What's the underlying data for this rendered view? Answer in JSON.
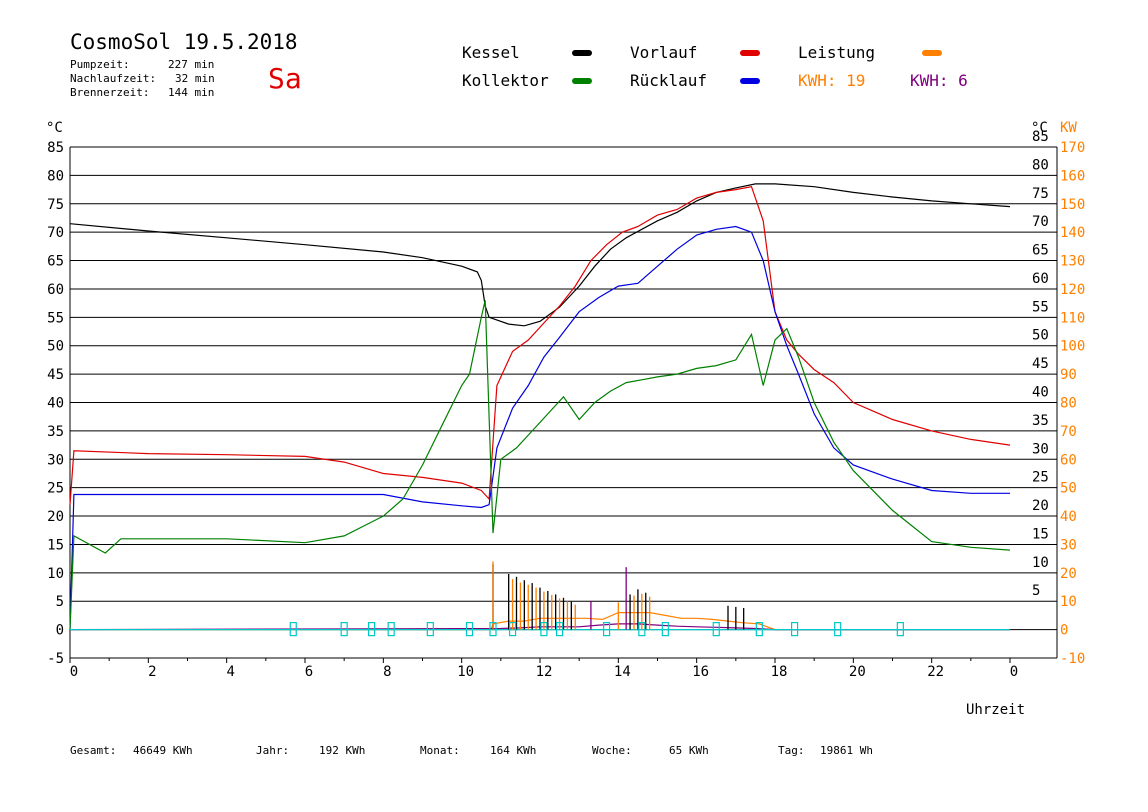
{
  "header": {
    "title": "CosmoSol 19.5.2018",
    "day": "Sa",
    "stats": [
      {
        "label": "Pumpzeit:",
        "value": "227 min"
      },
      {
        "label": "Nachlaufzeit:",
        "value": "32 min"
      },
      {
        "label": "Brennerzeit:",
        "value": "144 min"
      }
    ]
  },
  "legend": {
    "items": [
      {
        "label": "Kessel",
        "color": "#000000"
      },
      {
        "label": "Vorlauf",
        "color": "#e00000"
      },
      {
        "label": "Leistung",
        "color": "#ff8000"
      },
      {
        "label": "Kollektor",
        "color": "#008000"
      },
      {
        "label": "Rücklauf",
        "color": "#0000e0"
      }
    ],
    "kwh1_label": "KWH: 19",
    "kwh1_color": "#ff8000",
    "kwh2_label": "KWH: 6",
    "kwh2_color": "#800080"
  },
  "footer": {
    "gesamt_label": "Gesamt:",
    "gesamt_value": "46649 KWh",
    "jahr_label": "Jahr:",
    "jahr_value": "192 KWh",
    "monat_label": "Monat:",
    "monat_value": "164 KWh",
    "woche_label": "Woche:",
    "woche_value": "65 KWh",
    "tag_label": "Tag:",
    "tag_value": "19861 Wh"
  },
  "chart_data": {
    "type": "line",
    "xlabel": "Uhrzeit",
    "ylabel_left": "°C",
    "ylabel_right_temp": "°C",
    "ylabel_right_power": "KW",
    "xlim": [
      0,
      24
    ],
    "ylim": [
      -5,
      85
    ],
    "x_ticks": [
      "0",
      "2",
      "4",
      "6",
      "8",
      "10",
      "12",
      "14",
      "16",
      "18",
      "20",
      "22",
      "0"
    ],
    "y_ticks": [
      -5,
      0,
      5,
      10,
      15,
      20,
      25,
      30,
      35,
      40,
      45,
      50,
      55,
      60,
      65,
      70,
      75,
      80,
      85
    ],
    "y_ticks_right_temp": [
      5,
      10,
      15,
      20,
      25,
      30,
      35,
      40,
      45,
      50,
      55,
      60,
      65,
      70,
      75,
      80,
      85
    ],
    "y_ticks_right_power": [
      -10,
      0,
      10,
      20,
      30,
      40,
      50,
      60,
      70,
      80,
      90,
      100,
      110,
      120,
      130,
      140,
      150,
      160,
      170
    ],
    "grid": "horizontal",
    "series": [
      {
        "name": "Kessel",
        "color": "#000000",
        "x": [
          0,
          2,
          4,
          6,
          8,
          9,
          10,
          10.4,
          10.5,
          10.6,
          10.7,
          11.2,
          11.6,
          12,
          12.5,
          13,
          13.4,
          13.8,
          14.2,
          14.6,
          15,
          15.5,
          16,
          16.5,
          17,
          17.5,
          18,
          19,
          20,
          21,
          22,
          23,
          24
        ],
        "y": [
          71.5,
          70.2,
          69,
          67.8,
          66.5,
          65.5,
          64,
          63,
          61.5,
          57,
          55,
          53.8,
          53.5,
          54.3,
          56.8,
          60.5,
          64,
          67,
          69,
          70.5,
          72,
          73.5,
          75.5,
          77,
          77.8,
          78.5,
          78.5,
          78,
          77,
          76.2,
          75.5,
          75,
          74.5
        ]
      },
      {
        "name": "Vorlauf",
        "color": "#e00000",
        "x": [
          0,
          0.1,
          2,
          4,
          6,
          7,
          8,
          9,
          10,
          10.5,
          10.7,
          10.9,
          11.3,
          11.7,
          12.1,
          12.5,
          12.9,
          13.3,
          13.7,
          14.1,
          14.5,
          15,
          15.5,
          16,
          16.5,
          17,
          17.4,
          17.7,
          18,
          18.3,
          18.6,
          19,
          19.5,
          20,
          21,
          22,
          23,
          24
        ],
        "y": [
          22,
          31.5,
          31,
          30.8,
          30.5,
          29.5,
          27.5,
          26.8,
          25.8,
          24.5,
          23,
          43,
          49,
          51,
          54,
          57,
          60.5,
          65,
          67.8,
          70,
          71,
          73,
          74,
          76,
          77,
          77.5,
          78,
          72,
          56,
          51,
          48.5,
          45.8,
          43.5,
          40,
          37,
          35,
          33.5,
          32.5
        ]
      },
      {
        "name": "Rücklauf",
        "color": "#0000e0",
        "x": [
          0,
          0.1,
          2,
          4,
          6,
          7,
          8,
          9,
          10,
          10.5,
          10.7,
          10.9,
          11.3,
          11.7,
          12.1,
          12.5,
          13,
          13.5,
          14,
          14.5,
          15,
          15.5,
          16,
          16.5,
          17,
          17.4,
          17.7,
          18,
          18.3,
          18.6,
          19,
          19.5,
          20,
          21,
          22,
          23,
          24
        ],
        "y": [
          0,
          23.8,
          23.8,
          23.8,
          23.8,
          23.8,
          23.8,
          22.5,
          21.8,
          21.5,
          22,
          32,
          39,
          43,
          48,
          51.5,
          56,
          58.5,
          60.5,
          61,
          64,
          67,
          69.5,
          70.5,
          71,
          70,
          65,
          56,
          50,
          45,
          38,
          32,
          29,
          26.5,
          24.5,
          24,
          24
        ]
      },
      {
        "name": "Kollektor",
        "color": "#008000",
        "x": [
          0,
          0.1,
          0.9,
          1.3,
          2,
          4,
          6,
          7,
          8,
          8.5,
          9,
          9.5,
          10,
          10.2,
          10.5,
          10.6,
          10.8,
          11,
          11.4,
          11.8,
          12.2,
          12.6,
          13,
          13.4,
          13.8,
          14.2,
          14.6,
          15,
          15.5,
          16,
          16.5,
          17,
          17.4,
          17.7,
          18,
          18.3,
          18.6,
          19,
          19.5,
          20,
          21,
          22,
          23,
          24
        ],
        "y": [
          0,
          16.5,
          13.5,
          16,
          16,
          16,
          15.3,
          16.5,
          20,
          23,
          29,
          36,
          43,
          45,
          55,
          58,
          17,
          30,
          32,
          35,
          38,
          41,
          37,
          40,
          42,
          43.5,
          44,
          44.5,
          45,
          46,
          46.5,
          47.5,
          52,
          43,
          51,
          53,
          48,
          40,
          33,
          28,
          21,
          15.5,
          14.5,
          14
        ]
      },
      {
        "name": "Leistung",
        "color": "#ff8000",
        "x": [
          0,
          10.75,
          10.8,
          11.2,
          11.6,
          12,
          12.4,
          12.8,
          13.2,
          13.6,
          14,
          14.4,
          14.8,
          15.2,
          15.6,
          16,
          16.4,
          16.8,
          17.2,
          17.6,
          17.8,
          18,
          24
        ],
        "y": [
          0,
          0,
          1,
          1.5,
          1.5,
          2,
          2,
          2,
          2,
          1.8,
          3,
          3,
          3,
          2.5,
          2,
          2,
          1.8,
          1.5,
          1.2,
          1,
          0.5,
          0,
          0
        ]
      },
      {
        "name": "",
        "color": "#800080",
        "x": [
          0,
          11,
          11.5,
          12,
          12.5,
          13,
          13.5,
          14,
          14.5,
          15,
          15.5,
          16,
          16.5,
          17,
          17.5,
          18,
          24
        ],
        "y": [
          0,
          0.2,
          0.3,
          0.5,
          0.5,
          0.5,
          0.8,
          1,
          1,
          0.8,
          0.6,
          0.5,
          0.4,
          0.3,
          0.2,
          0,
          0
        ]
      },
      {
        "name": "",
        "color": "#00c8c8",
        "x": [
          0,
          24
        ],
        "y": [
          0,
          0
        ]
      }
    ],
    "black_spikes": {
      "color": "#000000",
      "x": [
        10.8,
        11.2,
        11.4,
        11.6,
        11.8,
        12.0,
        12.2,
        12.4,
        12.6,
        12.8,
        14.3,
        14.5,
        14.7,
        16.8,
        17.0,
        17.2
      ],
      "y": [
        11.5,
        9.8,
        9.3,
        8.7,
        8.2,
        7.4,
        6.8,
        6.2,
        5.6,
        4.9,
        6.2,
        7.1,
        6.5,
        4.2,
        4.0,
        3.8
      ]
    },
    "orange_spikes": {
      "color": "#ff8000",
      "x": [
        10.8,
        11.3,
        11.5,
        11.7,
        11.9,
        12.1,
        12.3,
        12.5,
        12.7,
        12.9,
        14.0,
        14.4,
        14.6,
        14.8
      ],
      "y": [
        12.0,
        8.9,
        8.3,
        7.9,
        7.4,
        6.7,
        6.1,
        5.5,
        5.0,
        4.4,
        4.8,
        6.0,
        6.3,
        5.8
      ]
    },
    "purple_spikes": {
      "color": "#800080",
      "x": [
        13.3,
        14.2
      ],
      "y": [
        5.0,
        11.0
      ]
    },
    "cyan_markers": {
      "color": "#00c8c8",
      "x": [
        5.7,
        7.0,
        7.7,
        8.2,
        9.2,
        10.2,
        10.8,
        11.3,
        12.1,
        12.5,
        13.7,
        14.6,
        15.2,
        16.5,
        17.6,
        18.5,
        19.6,
        21.2
      ]
    }
  }
}
